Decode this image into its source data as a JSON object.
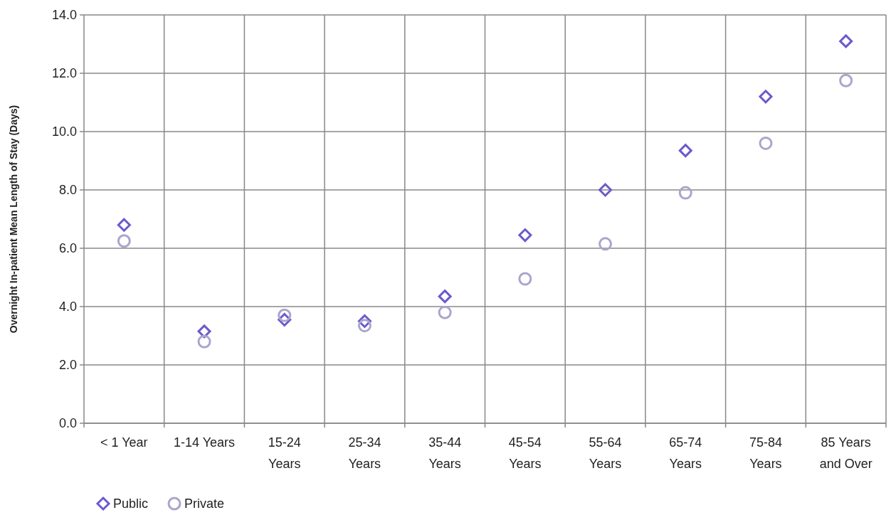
{
  "chart_data": {
    "type": "scatter",
    "ylabel": "Overnight In-patient Mean Length of Stay (Days)",
    "categories": [
      "< 1 Year",
      "1-14 Years",
      "15-24 Years",
      "25-34 Years",
      "35-44 Years",
      "45-54 Years",
      "55-64 Years",
      "65-74 Years",
      "75-84 Years",
      "85 Years and Over"
    ],
    "series": [
      {
        "name": "Public",
        "color": "#6a5acd",
        "marker": "diamond",
        "values": [
          6.8,
          3.15,
          3.55,
          3.5,
          4.35,
          6.45,
          8.0,
          9.35,
          11.2,
          13.1
        ]
      },
      {
        "name": "Private",
        "color": "#a9a6cc",
        "marker": "circle",
        "values": [
          6.25,
          2.8,
          3.7,
          3.35,
          3.8,
          4.95,
          6.15,
          7.9,
          9.6,
          11.75
        ]
      }
    ],
    "ylim": [
      0,
      14
    ],
    "yticks": [
      {
        "value": 0,
        "label": "0.0"
      },
      {
        "value": 2,
        "label": "2.0"
      },
      {
        "value": 4,
        "label": "4.0"
      },
      {
        "value": 6,
        "label": "6.0"
      },
      {
        "value": 8,
        "label": "8.0"
      },
      {
        "value": 10,
        "label": "10.0"
      },
      {
        "value": 12,
        "label": "12.0"
      },
      {
        "value": 14,
        "label": "14.0"
      }
    ],
    "grid": true,
    "legend": "bottom left"
  }
}
